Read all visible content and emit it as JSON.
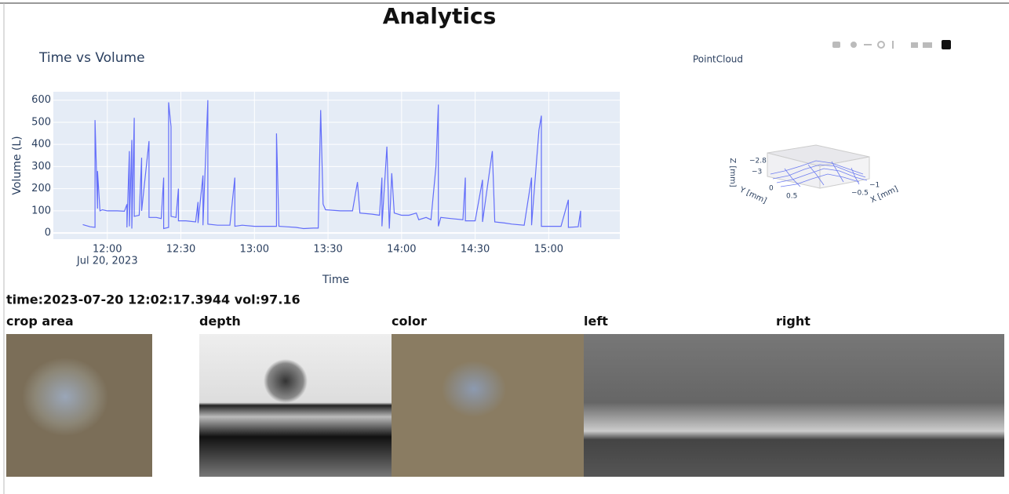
{
  "header": {
    "title": "Analytics"
  },
  "chart_data": {
    "type": "line",
    "title": "Time vs Volume",
    "x_label": "Time",
    "y_label": "Volume (L)",
    "xtick_sublabel": "Jul 20, 2023",
    "xlim": [
      "2023-07-20 11:38",
      "2023-07-20 15:29"
    ],
    "xticks": [
      {
        "value": "2023-07-20 12:00",
        "label": "12:00"
      },
      {
        "value": "2023-07-20 12:30",
        "label": "12:30"
      },
      {
        "value": "2023-07-20 13:00",
        "label": "13:00"
      },
      {
        "value": "2023-07-20 13:30",
        "label": "13:30"
      },
      {
        "value": "2023-07-20 14:00",
        "label": "14:00"
      },
      {
        "value": "2023-07-20 14:30",
        "label": "14:30"
      },
      {
        "value": "2023-07-20 15:00",
        "label": "15:00"
      }
    ],
    "ylim": [
      -28,
      638
    ],
    "yticks": [
      0,
      100,
      200,
      300,
      400,
      500,
      600
    ],
    "grid": true,
    "series": [
      {
        "name": "Volume (L)",
        "color": "#636efa",
        "x": [
          "2023-07-20 11:50",
          "2023-07-20 11:53",
          "2023-07-20 11:55",
          "2023-07-20 11:55",
          "2023-07-20 11:56",
          "2023-07-20 11:56",
          "2023-07-20 11:57",
          "2023-07-20 11:58",
          "2023-07-20 12:00",
          "2023-07-20 12:04",
          "2023-07-20 12:07",
          "2023-07-20 12:08",
          "2023-07-20 12:08",
          "2023-07-20 12:09",
          "2023-07-20 12:09",
          "2023-07-20 12:10",
          "2023-07-20 12:10",
          "2023-07-20 12:11",
          "2023-07-20 12:11",
          "2023-07-20 12:13",
          "2023-07-20 12:14",
          "2023-07-20 12:14",
          "2023-07-20 12:17",
          "2023-07-20 12:17",
          "2023-07-20 12:20",
          "2023-07-20 12:22",
          "2023-07-20 12:23",
          "2023-07-20 12:23",
          "2023-07-20 12:25",
          "2023-07-20 12:25",
          "2023-07-20 12:26",
          "2023-07-20 12:26",
          "2023-07-20 12:28",
          "2023-07-20 12:29",
          "2023-07-20 12:29",
          "2023-07-20 12:32",
          "2023-07-20 12:36",
          "2023-07-20 12:37",
          "2023-07-20 12:37",
          "2023-07-20 12:39",
          "2023-07-20 12:39",
          "2023-07-20 12:41",
          "2023-07-20 12:41",
          "2023-07-20 12:45",
          "2023-07-20 12:50",
          "2023-07-20 12:52",
          "2023-07-20 12:52",
          "2023-07-20 12:55",
          "2023-07-20 13:00",
          "2023-07-20 13:06",
          "2023-07-20 13:09",
          "2023-07-20 13:09",
          "2023-07-20 13:10",
          "2023-07-20 13:13",
          "2023-07-20 13:17",
          "2023-07-20 13:20",
          "2023-07-20 13:24",
          "2023-07-20 13:26",
          "2023-07-20 13:27",
          "2023-07-20 13:28",
          "2023-07-20 13:29",
          "2023-07-20 13:35",
          "2023-07-20 13:40",
          "2023-07-20 13:42",
          "2023-07-20 13:43",
          "2023-07-20 13:48",
          "2023-07-20 13:51",
          "2023-07-20 13:52",
          "2023-07-20 13:52",
          "2023-07-20 13:54",
          "2023-07-20 13:55",
          "2023-07-20 13:56",
          "2023-07-20 13:57",
          "2023-07-20 14:00",
          "2023-07-20 14:03",
          "2023-07-20 14:06",
          "2023-07-20 14:07",
          "2023-07-20 14:10",
          "2023-07-20 14:12",
          "2023-07-20 14:14",
          "2023-07-20 14:15",
          "2023-07-20 14:15",
          "2023-07-20 14:16",
          "2023-07-20 14:20",
          "2023-07-20 14:25",
          "2023-07-20 14:26",
          "2023-07-20 14:26",
          "2023-07-20 14:30",
          "2023-07-20 14:33",
          "2023-07-20 14:33",
          "2023-07-20 14:37",
          "2023-07-20 14:38",
          "2023-07-20 14:42",
          "2023-07-20 14:45",
          "2023-07-20 14:50",
          "2023-07-20 14:53",
          "2023-07-20 14:53",
          "2023-07-20 14:56",
          "2023-07-20 14:57",
          "2023-07-20 14:57",
          "2023-07-20 15:00",
          "2023-07-20 15:05",
          "2023-07-20 15:08",
          "2023-07-20 15:08",
          "2023-07-20 15:12",
          "2023-07-20 15:13",
          "2023-07-20 15:13"
        ],
        "values": [
          38,
          28,
          25,
          510,
          110,
          280,
          100,
          105,
          100,
          100,
          98,
          130,
          25,
          370,
          30,
          420,
          20,
          520,
          75,
          80,
          340,
          100,
          415,
          70,
          70,
          65,
          250,
          20,
          25,
          590,
          480,
          75,
          70,
          200,
          55,
          55,
          50,
          140,
          45,
          260,
          35,
          600,
          40,
          35,
          35,
          250,
          30,
          35,
          30,
          30,
          30,
          450,
          30,
          28,
          25,
          20,
          22,
          22,
          555,
          130,
          105,
          100,
          100,
          230,
          90,
          85,
          80,
          250,
          30,
          390,
          20,
          270,
          90,
          80,
          80,
          90,
          60,
          70,
          60,
          300,
          580,
          30,
          70,
          65,
          60,
          250,
          55,
          55,
          240,
          50,
          370,
          50,
          45,
          40,
          35,
          250,
          35,
          465,
          530,
          30,
          30,
          30,
          150,
          25,
          28,
          100,
          25
        ]
      }
    ]
  },
  "pointcloud": {
    "title": "PointCloud",
    "z_label": "Z [mm]",
    "y_label": "Y [mm]",
    "x_label": "X [mm]",
    "z_ticks": [
      "−2.8",
      "−3"
    ],
    "y_ticks": [
      "0",
      "0.5"
    ],
    "x_ticks": [
      "−0.5",
      "−1"
    ]
  },
  "status": "time:2023-07-20 12:02:17.3944 vol:97.16",
  "images": [
    "crop area",
    "depth",
    "color",
    "left",
    "right"
  ]
}
